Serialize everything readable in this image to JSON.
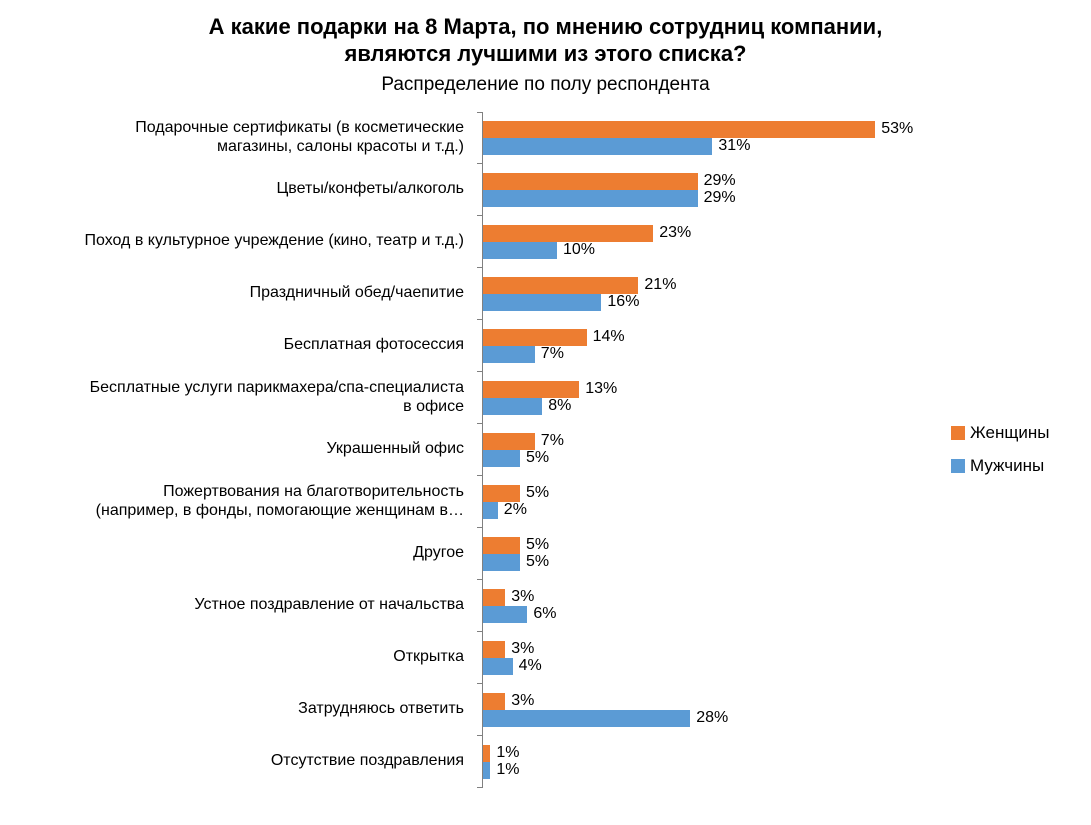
{
  "title": {
    "line1": "А какие подарки на 8 Марта, по мнению сотрудниц компании,",
    "line2": "являются лучшими из этого списка?",
    "subtitle": "Распределение по полу респондента"
  },
  "chart_data": {
    "type": "bar",
    "orientation": "horizontal",
    "title": "А какие подарки на 8 Марта, по мнению сотрудниц компании, являются лучшими из этого списка?",
    "subtitle": "Распределение по полу респондента",
    "categories": [
      "Подарочные сертификаты (в косметические\nмагазины, салоны красоты и т.д.)",
      "Цветы/конфеты/алкоголь",
      "Поход в культурное учреждение (кино, театр и т.д.)",
      "Праздничный обед/чаепитие",
      "Бесплатная фотосессия",
      "Бесплатные услуги парикмахера/спа-специалиста\nв офисе",
      "Украшенный офис",
      "Пожертвования на благотворительность\n(например, в фонды, помогающие женщинам в…",
      "Другое",
      "Устное поздравление от начальства",
      "Открытка",
      "Затрудняюсь ответить",
      "Отсутствие поздравления"
    ],
    "series": [
      {
        "name": "Женщины",
        "color": "#ED7D31",
        "values": [
          53,
          29,
          23,
          21,
          14,
          13,
          7,
          5,
          5,
          3,
          3,
          3,
          1
        ]
      },
      {
        "name": "Мужчины",
        "color": "#5B9BD5",
        "values": [
          31,
          29,
          10,
          16,
          7,
          8,
          5,
          2,
          5,
          6,
          4,
          28,
          1
        ]
      }
    ],
    "value_suffix": "%",
    "xlim": [
      0,
      55
    ],
    "grid": false,
    "legend_position": "right",
    "value_labels": true,
    "axis_color": "#808080"
  }
}
